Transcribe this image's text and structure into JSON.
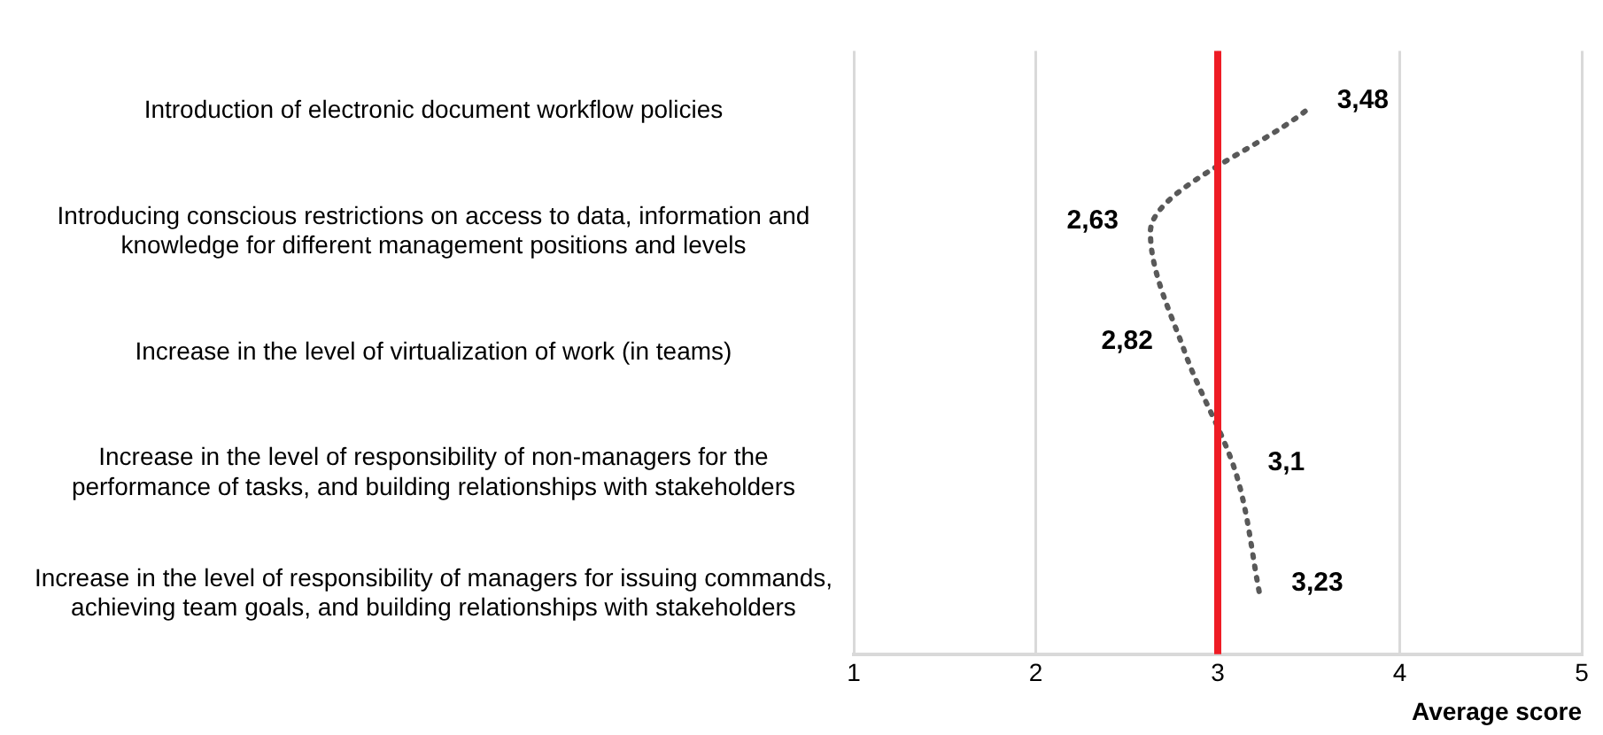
{
  "chart_data": {
    "type": "line",
    "orientation": "horizontal",
    "xlabel": "Average score",
    "categories": [
      "Introduction of electronic document workflow policies",
      "Introducing conscious restrictions on access to data, information and knowledge for different management positions and levels",
      "Increase in the level of virtualization of work (in teams)",
      "Increase in the level of responsibility of non-managers for the performance of tasks, and building relationships with stakeholders",
      "Increase in the level of responsibility of managers for issuing commands, achieving team goals, and building relationships with stakeholders"
    ],
    "series": [
      {
        "color": "#595959",
        "values": [
          3.48,
          2.63,
          2.82,
          3.1,
          3.23
        ],
        "value_labels": [
          "3,48",
          "2,63",
          "2,82",
          "3,1",
          "3,23"
        ]
      }
    ],
    "xlim": [
      1,
      5
    ],
    "xticks": [
      1,
      2,
      3,
      4,
      5
    ],
    "grid": "x",
    "legend": false,
    "marker": "none",
    "line_style": "dotted",
    "ref_lines": [
      {
        "axis": "x",
        "value": 3,
        "color": "#ee1c25"
      }
    ]
  }
}
